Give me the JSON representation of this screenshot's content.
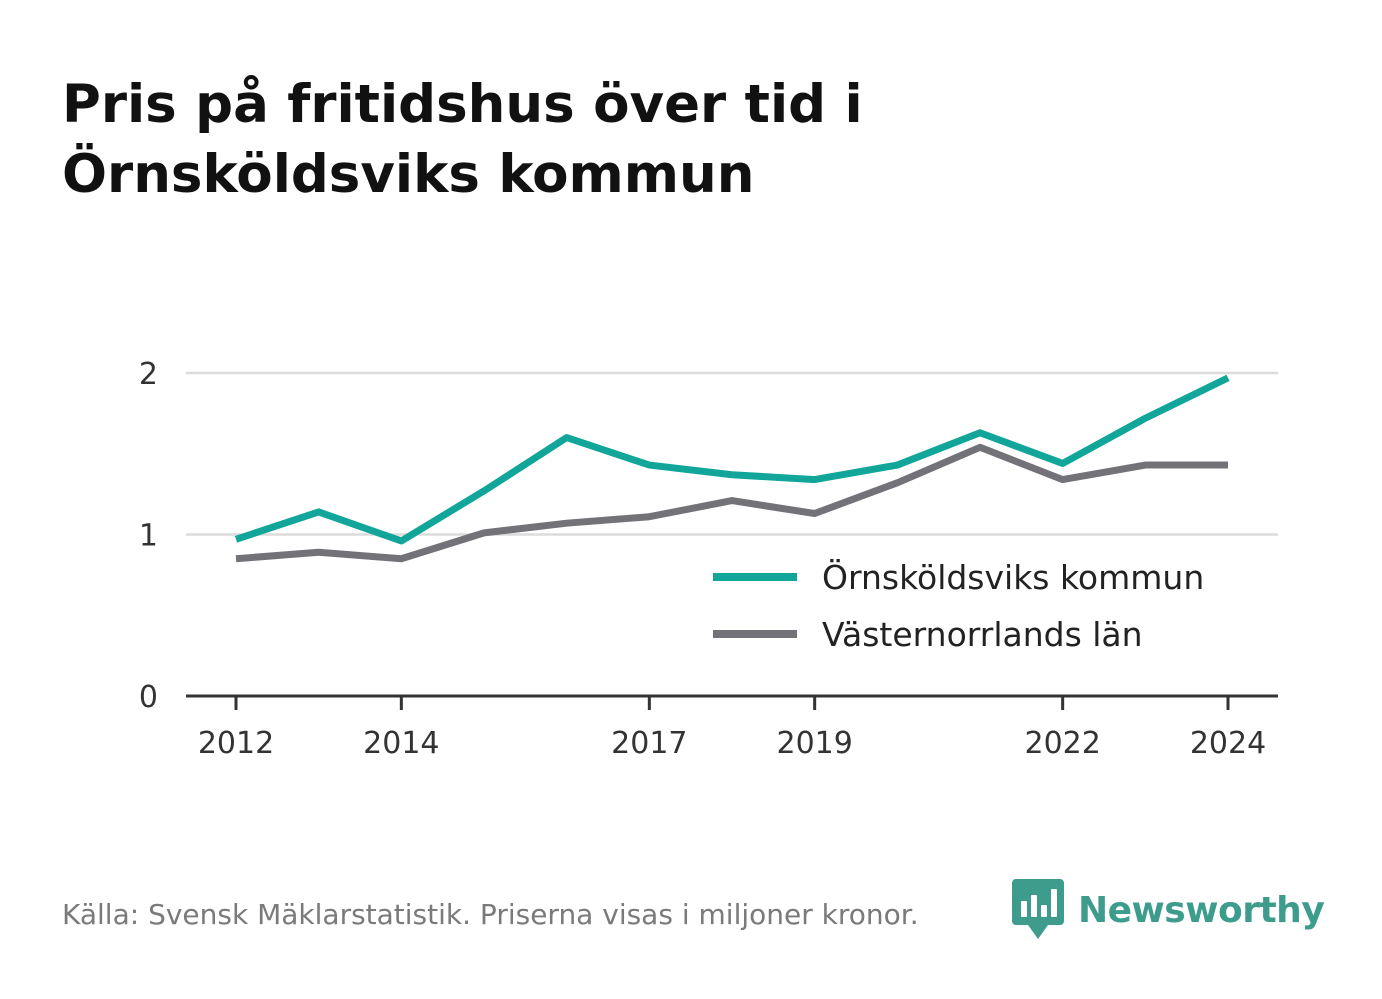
{
  "title_lines": [
    "Pris på fritidshus över tid i",
    "Örnsköldsviks kommun"
  ],
  "footer": "Källa: Svensk Mäklarstatistik. Priserna visas i miljoner kronor.",
  "brand": {
    "name": "Newsworthy",
    "color": "#3d9c8c",
    "icon": "chart-bubble-icon"
  },
  "chart_data": {
    "type": "line",
    "title": "Pris på fritidshus över tid i Örnsköldsviks kommun",
    "xlabel": "",
    "ylabel": "",
    "x": [
      2012,
      2013,
      2014,
      2015,
      2016,
      2017,
      2018,
      2019,
      2020,
      2021,
      2022,
      2023,
      2024
    ],
    "xticks": [
      2012,
      2014,
      2017,
      2019,
      2022,
      2024
    ],
    "yticks": [
      0,
      1,
      2
    ],
    "ylim": [
      0,
      2
    ],
    "grid": true,
    "legend_position": "bottom-right",
    "series": [
      {
        "name": "Örnsköldsviks kommun",
        "color": "#12a69a",
        "values": [
          0.97,
          1.14,
          0.96,
          1.27,
          1.6,
          1.43,
          1.37,
          1.34,
          1.43,
          1.63,
          1.44,
          1.72,
          1.97
        ]
      },
      {
        "name": "Västernorrlands län",
        "color": "#737278",
        "values": [
          0.85,
          0.89,
          0.85,
          1.01,
          1.07,
          1.11,
          1.21,
          1.13,
          1.32,
          1.54,
          1.34,
          1.43,
          1.43
        ]
      }
    ]
  }
}
